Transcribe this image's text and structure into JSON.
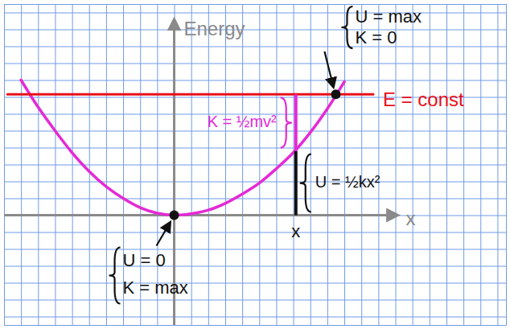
{
  "chart_data": {
    "type": "line",
    "x_label": "x",
    "y_label": "Energy",
    "xlim": [
      -10,
      19.5
    ],
    "ylim": [
      -6.5,
      12.5
    ],
    "xticks": [
      -10,
      -9,
      -8,
      -7,
      -6,
      -5,
      -4,
      -3,
      -2,
      -1,
      0,
      1,
      2,
      3,
      4,
      5,
      6,
      7,
      8,
      9,
      10,
      11,
      12,
      13,
      14,
      15,
      16,
      17,
      18,
      19
    ],
    "yticks": [
      -6,
      -5,
      -4,
      -3,
      -2,
      -1,
      0,
      1,
      2,
      3,
      4,
      5,
      6,
      7,
      8,
      9,
      10,
      11,
      12
    ],
    "grid": true,
    "tick_labels": false,
    "series": [
      {
        "x": [
          -9,
          -8,
          -7,
          -6,
          -5,
          -4,
          -3,
          -2,
          -1,
          0,
          1,
          2,
          3,
          4,
          5,
          6,
          7,
          8,
          9,
          10
        ],
        "values": [
          8.0,
          6.4,
          5.0,
          3.7,
          2.6,
          1.7,
          1.0,
          0.45,
          0.12,
          0,
          0.08,
          0.3,
          0.7,
          1.25,
          1.9,
          2.75,
          3.7,
          4.9,
          6.3,
          7.9
        ],
        "color": "#e42ad6"
      },
      {
        "x": [
          -9.8,
          11.7
        ],
        "values": [
          7.15,
          7.15
        ],
        "color": "#e8101a"
      }
    ],
    "annotations": {
      "energy_line": "E = const",
      "turning_point": {
        "x": 9.5,
        "y": 7.15,
        "labels": [
          "U = max",
          "K = 0"
        ]
      },
      "equilibrium": {
        "x": 0,
        "y": 0,
        "labels": [
          "U = 0",
          "K = max"
        ]
      },
      "position": {
        "x": 7.15,
        "u": 3.8,
        "label": "x",
        "u_label": "U = ½kx²",
        "k_label": "K = ½mv²"
      }
    }
  }
}
